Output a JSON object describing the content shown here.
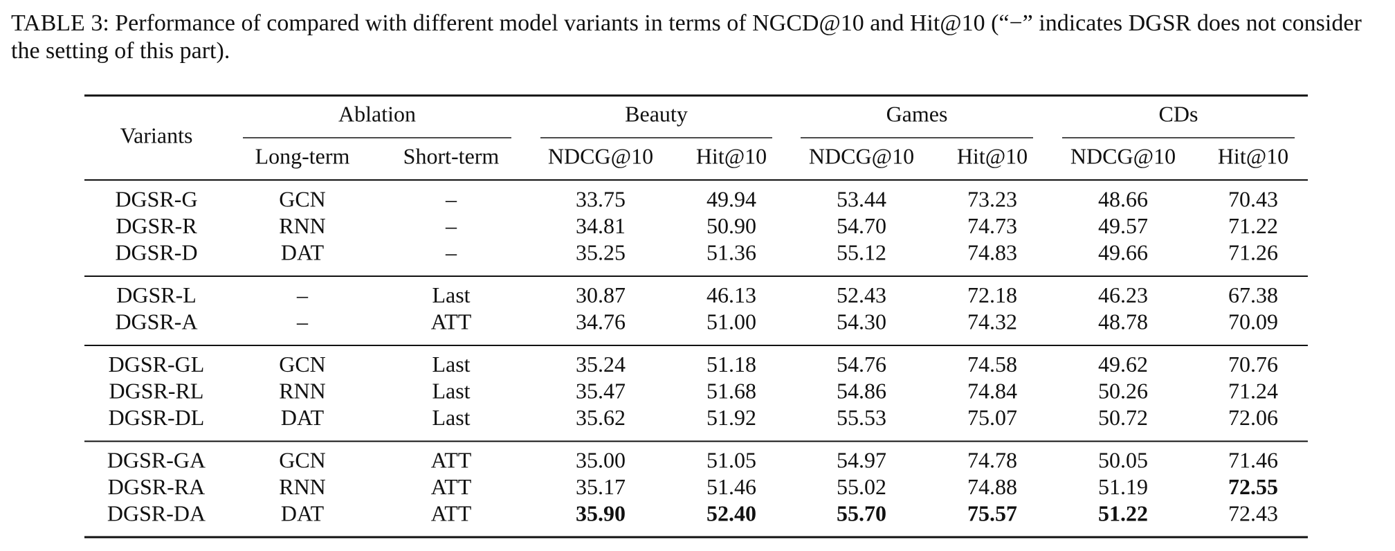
{
  "caption": "TABLE 3: Performance of compared with different model variants in terms of NGCD@10 and Hit@10 (“−” indicates DGSR does not consider the setting of this part).",
  "table": {
    "row_header": "Variants",
    "groups": [
      {
        "label": "Ablation",
        "columns": [
          "Long-term",
          "Short-term"
        ]
      },
      {
        "label": "Beauty",
        "columns": [
          "NDCG@10",
          "Hit@10"
        ]
      },
      {
        "label": "Games",
        "columns": [
          "NDCG@10",
          "Hit@10"
        ]
      },
      {
        "label": "CDs",
        "columns": [
          "NDCG@10",
          "Hit@10"
        ]
      }
    ],
    "body": [
      [
        [
          "DGSR-G",
          "GCN",
          "–",
          "33.75",
          "49.94",
          "53.44",
          "73.23",
          "48.66",
          "70.43"
        ],
        [
          "DGSR-R",
          "RNN",
          "–",
          "34.81",
          "50.90",
          "54.70",
          "74.73",
          "49.57",
          "71.22"
        ],
        [
          "DGSR-D",
          "DAT",
          "–",
          "35.25",
          "51.36",
          "55.12",
          "74.83",
          "49.66",
          "71.26"
        ]
      ],
      [
        [
          "DGSR-L",
          "–",
          "Last",
          "30.87",
          "46.13",
          "52.43",
          "72.18",
          "46.23",
          "67.38"
        ],
        [
          "DGSR-A",
          "–",
          "ATT",
          "34.76",
          "51.00",
          "54.30",
          "74.32",
          "48.78",
          "70.09"
        ]
      ],
      [
        [
          "DGSR-GL",
          "GCN",
          "Last",
          "35.24",
          "51.18",
          "54.76",
          "74.58",
          "49.62",
          "70.76"
        ],
        [
          "DGSR-RL",
          "RNN",
          "Last",
          "35.47",
          "51.68",
          "54.86",
          "74.84",
          "50.26",
          "71.24"
        ],
        [
          "DGSR-DL",
          "DAT",
          "Last",
          "35.62",
          "51.92",
          "55.53",
          "75.07",
          "50.72",
          "72.06"
        ]
      ],
      [
        [
          "DGSR-GA",
          "GCN",
          "ATT",
          "35.00",
          "51.05",
          "54.97",
          "74.78",
          "50.05",
          "71.46"
        ],
        [
          "DGSR-RA",
          "RNN",
          "ATT",
          "35.17",
          "51.46",
          "55.02",
          "74.88",
          "51.19",
          {
            "text": "72.55",
            "bold": true
          }
        ],
        [
          "DGSR-DA",
          "DAT",
          "ATT",
          {
            "text": "35.90",
            "bold": true
          },
          {
            "text": "52.40",
            "bold": true
          },
          {
            "text": "55.70",
            "bold": true
          },
          {
            "text": "75.57",
            "bold": true
          },
          {
            "text": "51.22",
            "bold": true
          },
          "72.43"
        ]
      ]
    ]
  }
}
